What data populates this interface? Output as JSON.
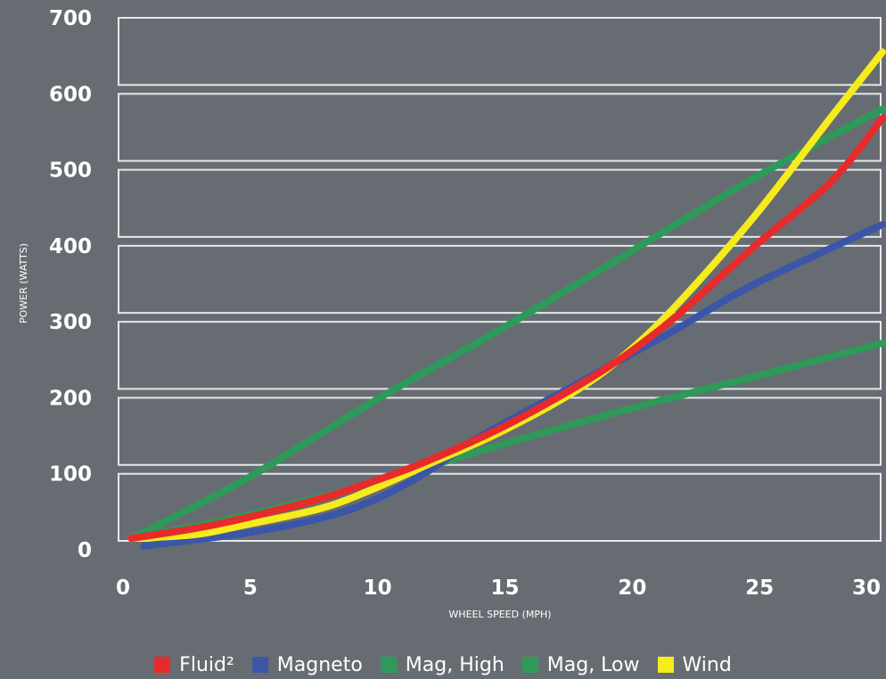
{
  "chart_data": {
    "type": "line",
    "xlabel": "WHEEL SPEED (MPH)",
    "ylabel": "POWER (WATTS)",
    "xlim": [
      0,
      30
    ],
    "ylim": [
      0,
      700
    ],
    "x_ticks": [
      "0",
      "5",
      "10",
      "15",
      "20",
      "25",
      "30"
    ],
    "y_ticks": [
      "0",
      "100",
      "200",
      "300",
      "400",
      "500",
      "600",
      "700"
    ],
    "grid": true,
    "legend_position": "bottom",
    "series": [
      {
        "name": "Mag, High",
        "color": "#2e9a5a",
        "points": [
          [
            0.5,
            15
          ],
          [
            5,
            93
          ],
          [
            10,
            195
          ],
          [
            15,
            290
          ],
          [
            20,
            390
          ],
          [
            25,
            490
          ],
          [
            30,
            580
          ]
        ]
      },
      {
        "name": "Mag, Low",
        "color": "#2e9a5a",
        "points": [
          [
            0.5,
            15
          ],
          [
            5,
            45
          ],
          [
            10,
            88
          ],
          [
            13,
            118
          ],
          [
            15,
            138
          ],
          [
            20,
            185
          ],
          [
            25,
            228
          ],
          [
            30,
            272
          ]
        ]
      },
      {
        "name": "Magneto",
        "color": "#3b56a8",
        "points": [
          [
            1,
            5
          ],
          [
            5,
            22
          ],
          [
            8,
            42
          ],
          [
            10,
            65
          ],
          [
            12,
            100
          ],
          [
            14,
            145
          ],
          [
            16,
            182
          ],
          [
            18,
            218
          ],
          [
            20,
            255
          ],
          [
            22,
            292
          ],
          [
            25,
            350
          ],
          [
            30,
            428
          ]
        ]
      },
      {
        "name": "Wind",
        "color": "#f5eb1d",
        "points": [
          [
            0.5,
            15
          ],
          [
            3,
            20
          ],
          [
            5,
            33
          ],
          [
            8,
            55
          ],
          [
            10,
            80
          ],
          [
            12,
            110
          ],
          [
            15,
            155
          ],
          [
            18,
            210
          ],
          [
            20,
            260
          ],
          [
            22,
            325
          ],
          [
            25,
            440
          ],
          [
            28,
            570
          ],
          [
            30,
            655
          ]
        ]
      },
      {
        "name": "Fluid²",
        "color": "#e82a2a",
        "points": [
          [
            0.5,
            15
          ],
          [
            3,
            28
          ],
          [
            5,
            42
          ],
          [
            8,
            68
          ],
          [
            10,
            90
          ],
          [
            12,
            115
          ],
          [
            15,
            160
          ],
          [
            18,
            215
          ],
          [
            20,
            258
          ],
          [
            22,
            310
          ],
          [
            25,
            400
          ],
          [
            28,
            485
          ],
          [
            30,
            568
          ]
        ]
      }
    ]
  },
  "legend": [
    {
      "label": "Fluid²",
      "color": "#e82a2a"
    },
    {
      "label": "Magneto",
      "color": "#3b56a8"
    },
    {
      "label": "Mag, High",
      "color": "#2e9a5a"
    },
    {
      "label": "Mag, Low",
      "color": "#2e9a5a"
    },
    {
      "label": "Wind",
      "color": "#f5eb1d"
    }
  ]
}
